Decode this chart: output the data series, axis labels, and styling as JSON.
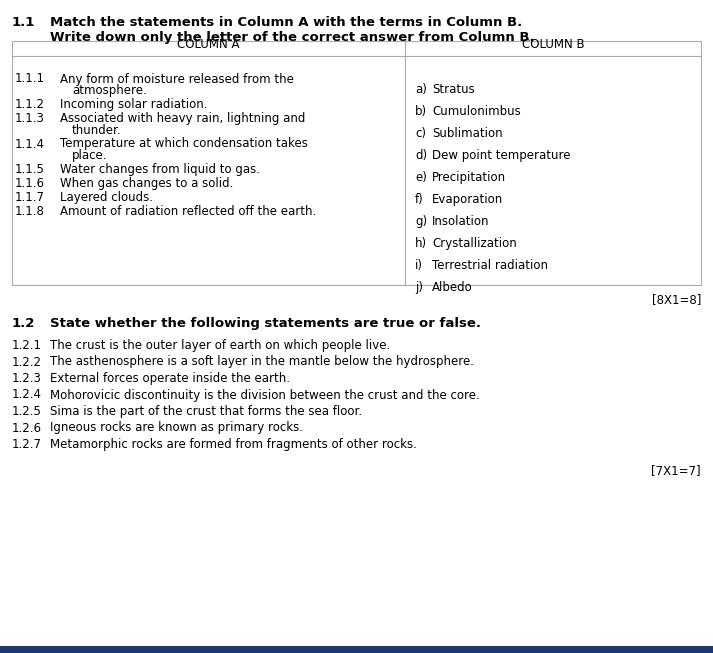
{
  "background_color": "#ffffff",
  "bottom_bar_color": "#1a3a6b",
  "section1_number": "1.1",
  "section1_bold": "Match the statements in Column A with the terms in Column B.",
  "section1_line2": "Write down only the letter of the correct answer from Column B.",
  "col_a_header": "COLUMN A",
  "col_b_header": "COLUMN B",
  "col_a_items": [
    [
      "1.1.1",
      "Any form of moisture released from the",
      "atmosphere."
    ],
    [
      "1.1.2",
      "Incoming solar radiation.",
      ""
    ],
    [
      "1.1.3",
      "Associated with heavy rain, lightning and",
      "thunder."
    ],
    [
      "1.1.4",
      "Temperature at which condensation takes",
      "place."
    ],
    [
      "1.1.5",
      "Water changes from liquid to gas.",
      ""
    ],
    [
      "1.1.6",
      "When gas changes to a solid.",
      ""
    ],
    [
      "1.1.7",
      "Layered clouds.",
      ""
    ],
    [
      "1.1.8",
      "Amount of radiation reflected off the earth.",
      ""
    ]
  ],
  "col_b_items": [
    [
      "a)",
      "Stratus"
    ],
    [
      "b)",
      "Cumulonimbus"
    ],
    [
      "c)",
      "Sublimation"
    ],
    [
      "d)",
      "Dew point temperature"
    ],
    [
      "e)",
      "Precipitation"
    ],
    [
      "f)",
      "Evaporation"
    ],
    [
      "g)",
      "Insolation"
    ],
    [
      "h)",
      "Crystallization"
    ],
    [
      "i)",
      "Terrestrial radiation"
    ],
    [
      "j)",
      "Albedo"
    ]
  ],
  "marks1": "[8X1=8]",
  "section2_number": "1.2",
  "section2_bold": "State whether the following statements are true or false.",
  "section2_items": [
    [
      "1.2.1",
      "The crust is the outer layer of earth on which people live."
    ],
    [
      "1.2.2",
      "The asthenosphere is a soft layer in the mantle below the hydrosphere."
    ],
    [
      "1.2.3",
      "External forces operate inside the earth."
    ],
    [
      "1.2.4",
      "Mohorovicic discontinuity is the division between the crust and the core."
    ],
    [
      "1.2.5",
      "Sima is the part of the crust that forms the sea floor."
    ],
    [
      "1.2.6",
      "Igneous rocks are known as primary rocks."
    ],
    [
      "1.2.7",
      "Metamorphic rocks are formed from fragments of other rocks."
    ]
  ],
  "marks2": "[7X1=7]",
  "table_border_color": "#aaaaaa",
  "text_color": "#000000",
  "body_fontsize": 8.5,
  "header_fontsize": 8.5,
  "section_num_fontsize": 9.5,
  "section_bold_fontsize": 9.5
}
